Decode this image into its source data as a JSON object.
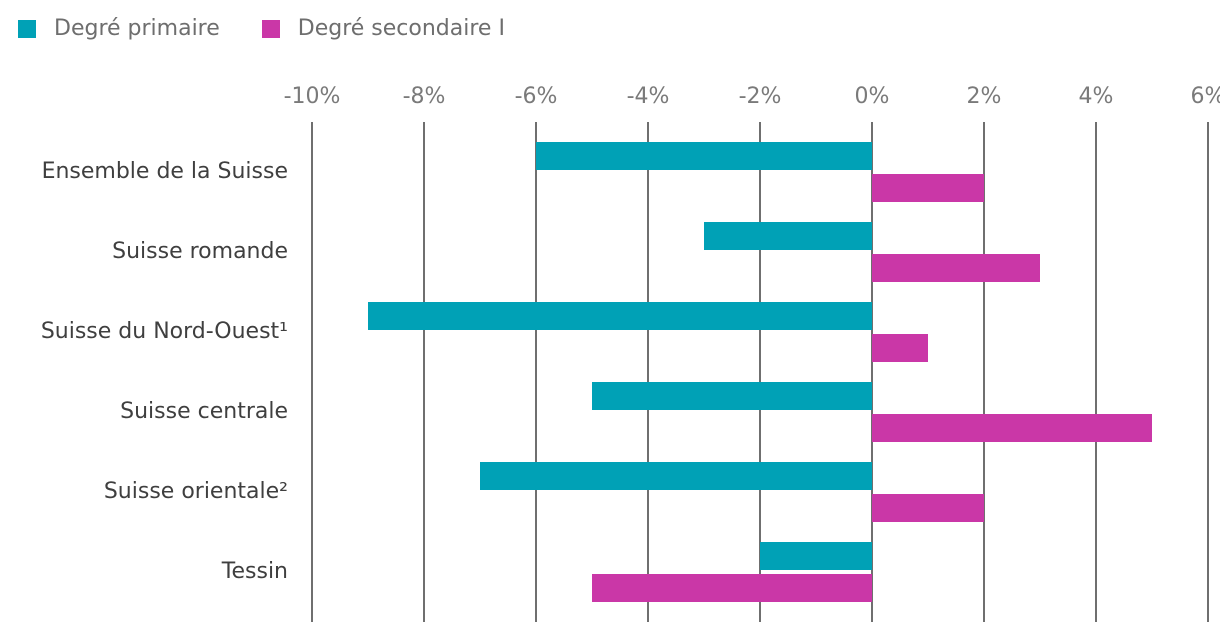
{
  "legend": {
    "items": [
      {
        "label": "Degré primaire",
        "color": "#00a1b6"
      },
      {
        "label": "Degré secondaire I",
        "color": "#ca37a7"
      }
    ]
  },
  "chart_data": {
    "type": "bar",
    "orientation": "horizontal",
    "unit": "%",
    "categories": [
      "Ensemble de la Suisse",
      "Suisse romande",
      "Suisse du Nord-Ouest¹",
      "Suisse centrale",
      "Suisse orientale²",
      "Tessin"
    ],
    "series": [
      {
        "name": "Degré primaire",
        "color": "#00a1b6",
        "values": [
          -6,
          -3,
          -9,
          -5,
          -7,
          -2
        ]
      },
      {
        "name": "Degré secondaire I",
        "color": "#ca37a7",
        "values": [
          2,
          3,
          1,
          5,
          2,
          -5
        ]
      }
    ],
    "x_ticks": [
      "-10%",
      "-8%",
      "-6%",
      "-4%",
      "-2%",
      "0%",
      "2%",
      "4%",
      "6%"
    ],
    "x_tick_values": [
      -10,
      -8,
      -6,
      -4,
      -2,
      0,
      2,
      4,
      6
    ],
    "xlim": [
      -10,
      6
    ],
    "grid": "vertical",
    "legend_position": "top-left"
  },
  "colors": {
    "series_primary": "#00a1b6",
    "series_secondary": "#ca37a7",
    "gridline": "#6f6f6f",
    "axis_tick_label": "#7a7a7a",
    "category_label": "#3f3f3f",
    "legend_label": "#6e6e6e",
    "background": "#ffffff"
  }
}
